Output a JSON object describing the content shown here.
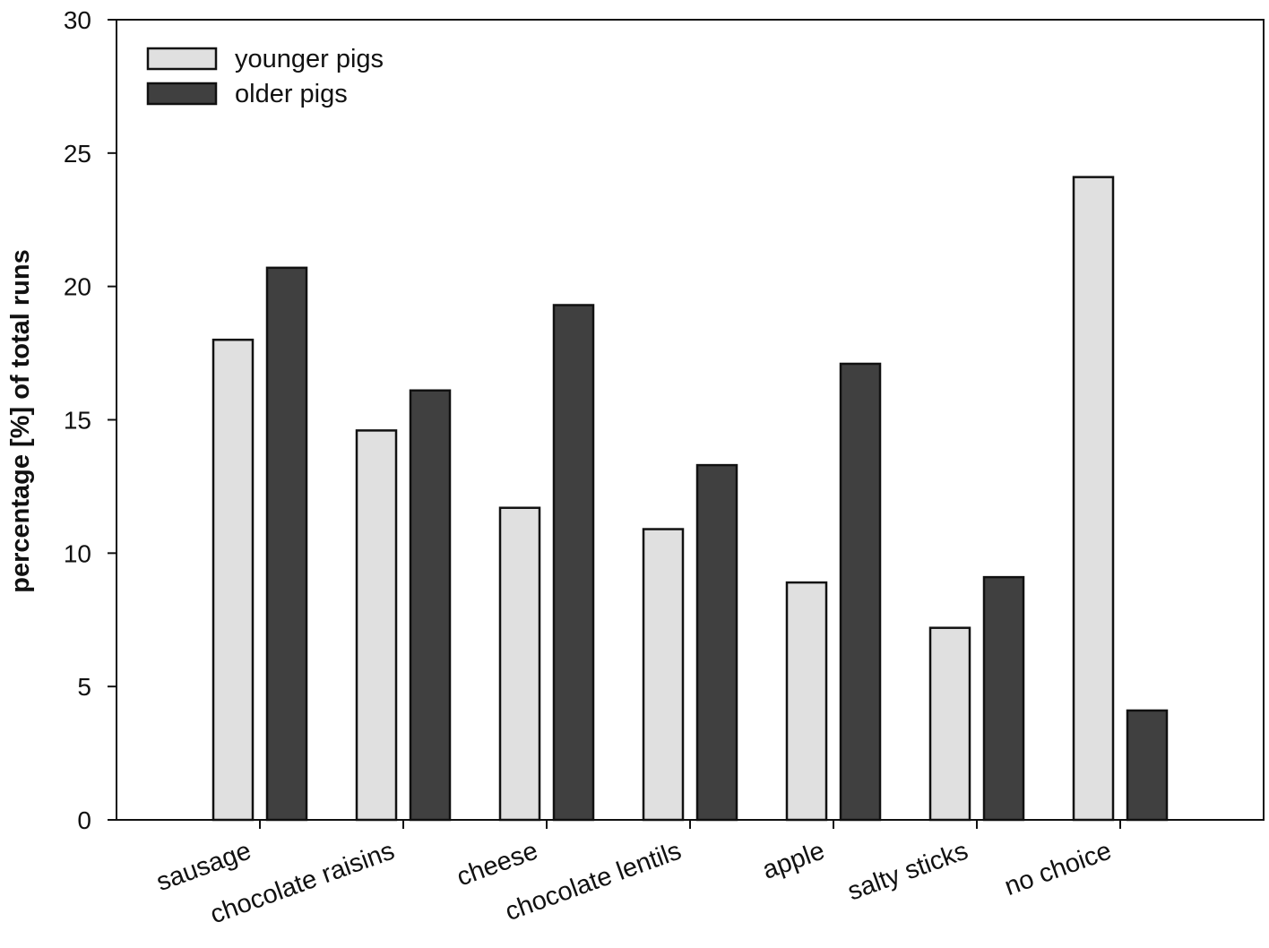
{
  "chart_data": {
    "type": "bar",
    "y_label": "percentage [%] of total runs",
    "categories": [
      "sausage",
      "chocolate raisins",
      "cheese",
      "chocolate lentils",
      "apple",
      "salty sticks",
      "no choice"
    ],
    "series": [
      {
        "name": "younger pigs",
        "color": "#e0e0e0",
        "values": [
          18.0,
          14.6,
          11.7,
          10.9,
          8.9,
          7.2,
          24.1
        ]
      },
      {
        "name": "older pigs",
        "color": "#404040",
        "values": [
          20.7,
          16.1,
          19.3,
          13.3,
          17.1,
          9.1,
          4.1
        ]
      }
    ],
    "ylim": [
      0,
      30
    ],
    "yticks": [
      0,
      5,
      10,
      15,
      20,
      25,
      30
    ],
    "legend": "top-left"
  }
}
